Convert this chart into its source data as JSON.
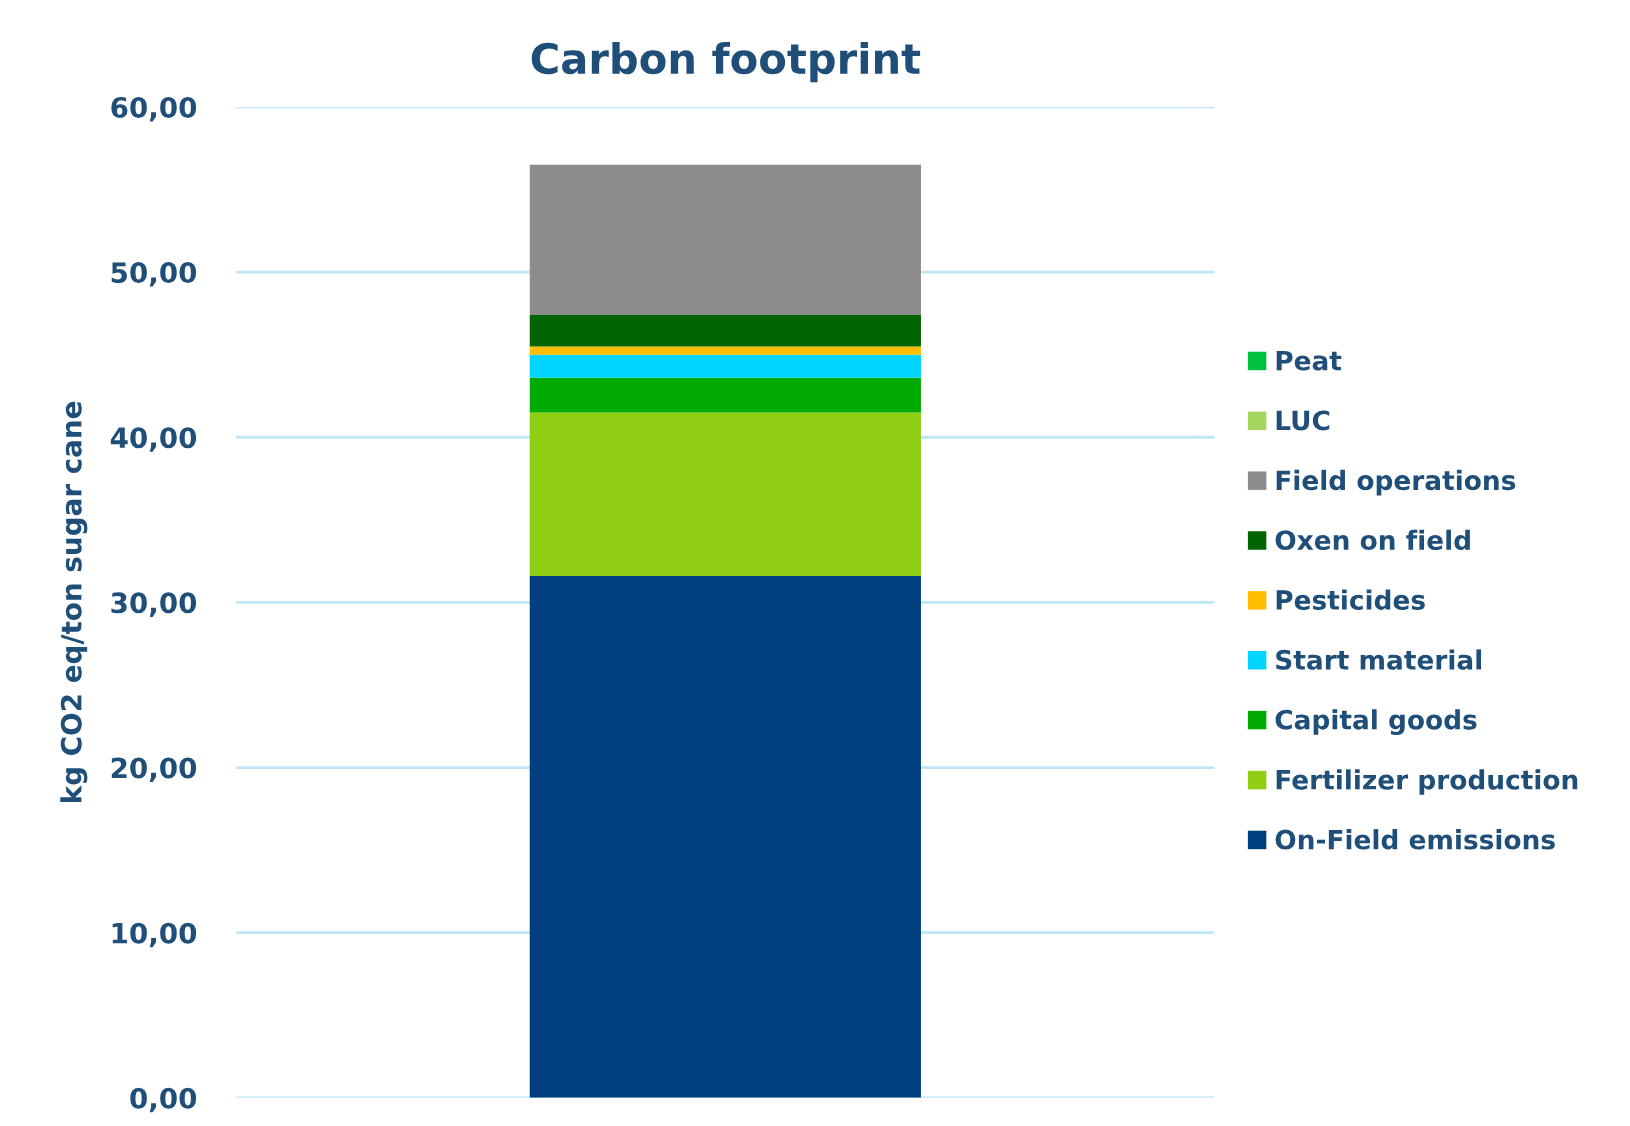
{
  "chart_data": {
    "type": "bar",
    "stacked": true,
    "title": "Carbon footprint",
    "ylabel": "kg CO2 eq/ton sugar cane",
    "categories": [
      null
    ],
    "series": [
      {
        "name": "On-Field emissions",
        "color": "#003f7f",
        "values": [
          31.6
        ]
      },
      {
        "name": "Fertilizer production",
        "color": "#8fce12",
        "values": [
          9.9
        ]
      },
      {
        "name": "Capital goods",
        "color": "#00aa00",
        "values": [
          2.1
        ]
      },
      {
        "name": "Start material",
        "color": "#00d4ff",
        "values": [
          1.4
        ]
      },
      {
        "name": "Pesticides",
        "color": "#ffbf00",
        "values": [
          0.5
        ]
      },
      {
        "name": "Oxen on field",
        "color": "#006400",
        "values": [
          1.9
        ]
      },
      {
        "name": "Field operations",
        "color": "#8c8c8c",
        "values": [
          9.1
        ]
      },
      {
        "name": "LUC",
        "color": "#a4d65e",
        "values": [
          0
        ]
      },
      {
        "name": "Peat",
        "color": "#00c040",
        "values": [
          0
        ]
      }
    ],
    "ylim": [
      0,
      60
    ],
    "yticks": [
      {
        "value": 0,
        "label": "0,00"
      },
      {
        "value": 10,
        "label": "10,00"
      },
      {
        "value": 20,
        "label": "20,00"
      },
      {
        "value": 30,
        "label": "30,00"
      },
      {
        "value": 40,
        "label": "40,00"
      },
      {
        "value": 50,
        "label": "50,00"
      },
      {
        "value": 60,
        "label": "60,00"
      }
    ],
    "grid": "y",
    "legend": "right"
  }
}
